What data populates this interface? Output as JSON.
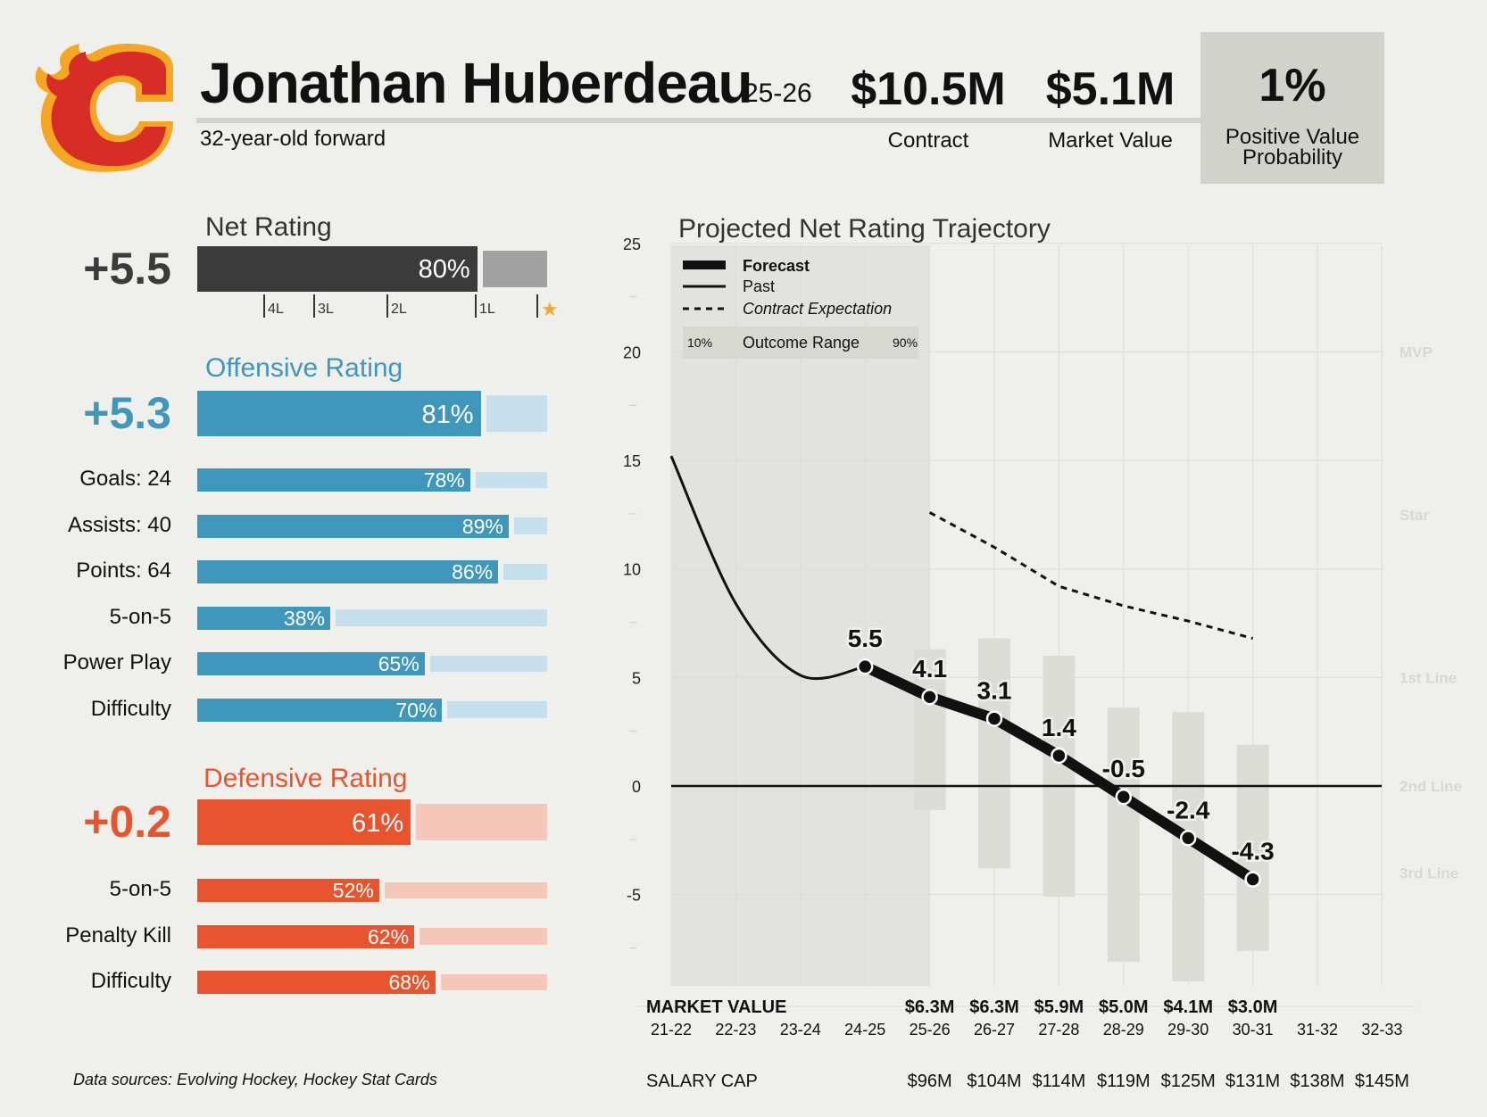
{
  "header": {
    "player_name": "Jonathan Huberdeau",
    "season": "25-26",
    "subtitle": "32-year-old forward",
    "contract_value": "$10.5M",
    "contract_label": "Contract",
    "market_value": "$5.1M",
    "market_label": "Market Value",
    "pvp_value": "1%",
    "pvp_label_line1": "Positive Value",
    "pvp_label_line2": "Probability"
  },
  "net": {
    "title": "Net Rating",
    "value": "+5.5",
    "pct_label": "80%",
    "pct": 80,
    "tiers": [
      "4L",
      "3L",
      "2L",
      "1L",
      "★"
    ],
    "color": "#3b3b3b",
    "rest_color": "#a2a2a2"
  },
  "offense": {
    "title": "Offensive Rating",
    "value": "+5.3",
    "pct_label": "81%",
    "pct": 81,
    "color": "#3f97bc",
    "rest_color": "#c5e0ec",
    "rows": [
      {
        "label": "Goals: 24",
        "pct_label": "78%",
        "pct": 78
      },
      {
        "label": "Assists: 40",
        "pct_label": "89%",
        "pct": 89
      },
      {
        "label": "Points: 64",
        "pct_label": "86%",
        "pct": 86
      },
      {
        "label": "5-on-5",
        "pct_label": "38%",
        "pct": 38
      },
      {
        "label": "Power Play",
        "pct_label": "65%",
        "pct": 65
      },
      {
        "label": "Difficulty",
        "pct_label": "70%",
        "pct": 70
      }
    ]
  },
  "defense": {
    "title": "Defensive Rating",
    "value": "+0.2",
    "pct_label": "61%",
    "pct": 61,
    "color": "#e8542e",
    "rest_color": "#f6c6b9",
    "rows": [
      {
        "label": "5-on-5",
        "pct_label": "52%",
        "pct": 52
      },
      {
        "label": "Penalty Kill",
        "pct_label": "62%",
        "pct": 62
      },
      {
        "label": "Difficulty",
        "pct_label": "68%",
        "pct": 68
      }
    ]
  },
  "footer": {
    "sources": "Data sources: Evolving Hockey, Hockey Stat Cards"
  },
  "chart_data": {
    "type": "line",
    "title": "Projected Net Rating Trajectory",
    "categories": [
      "21-22",
      "22-23",
      "23-24",
      "24-25",
      "25-26",
      "26-27",
      "27-28",
      "28-29",
      "29-30",
      "30-31",
      "31-32",
      "32-33"
    ],
    "ylim": [
      -9,
      25
    ],
    "yticks": [
      25,
      20,
      15,
      10,
      5,
      0,
      -5
    ],
    "tier_labels": [
      {
        "label": "MVP",
        "y": 20
      },
      {
        "label": "Star",
        "y": 12.5
      },
      {
        "label": "1st Line",
        "y": 5
      },
      {
        "label": "2nd Line",
        "y": 0
      },
      {
        "label": "3rd Line",
        "y": -4
      }
    ],
    "legend": {
      "forecast": "Forecast",
      "past": "Past",
      "contract": "Contract Expectation",
      "range_low": "10%",
      "range_label": "Outcome Range",
      "range_high": "90%",
      "placement": "top-left"
    },
    "series": [
      {
        "name": "Past",
        "x": [
          "21-22",
          "22-23",
          "23-24",
          "24-25"
        ],
        "values": [
          15.2,
          8.4,
          5.1,
          5.5
        ]
      },
      {
        "name": "Forecast",
        "x": [
          "24-25",
          "25-26",
          "26-27",
          "27-28",
          "28-29",
          "29-30",
          "30-31"
        ],
        "values": [
          5.5,
          4.1,
          3.1,
          1.4,
          -0.5,
          -2.4,
          -4.3
        ],
        "labels": [
          "5.5",
          "4.1",
          "3.1",
          "1.4",
          "-0.5",
          "-2.4",
          "-4.3"
        ]
      },
      {
        "name": "Contract Expectation",
        "x": [
          "25-26",
          "26-27",
          "27-28",
          "28-29",
          "29-30",
          "30-31"
        ],
        "values": [
          12.6,
          11.0,
          9.2,
          8.3,
          7.6,
          6.8
        ]
      }
    ],
    "outcome_range": {
      "x": [
        "25-26",
        "26-27",
        "27-28",
        "28-29",
        "29-30",
        "30-31"
      ],
      "low": [
        -1.1,
        -3.8,
        -5.1,
        -8.1,
        -9.0,
        -7.6
      ],
      "high": [
        6.3,
        6.8,
        6.0,
        3.6,
        3.4,
        1.9
      ]
    },
    "market_value_label": "MARKET VALUE",
    "market_values": [
      "",
      "",
      "",
      "",
      "$6.3M",
      "$6.3M",
      "$5.9M",
      "$5.0M",
      "$4.1M",
      "$3.0M",
      "",
      ""
    ],
    "salary_cap_label": "SALARY CAP",
    "salary_caps": [
      "",
      "",
      "",
      "",
      "$96M",
      "$104M",
      "$114M",
      "$119M",
      "$125M",
      "$131M",
      "$138M",
      "$145M"
    ]
  }
}
